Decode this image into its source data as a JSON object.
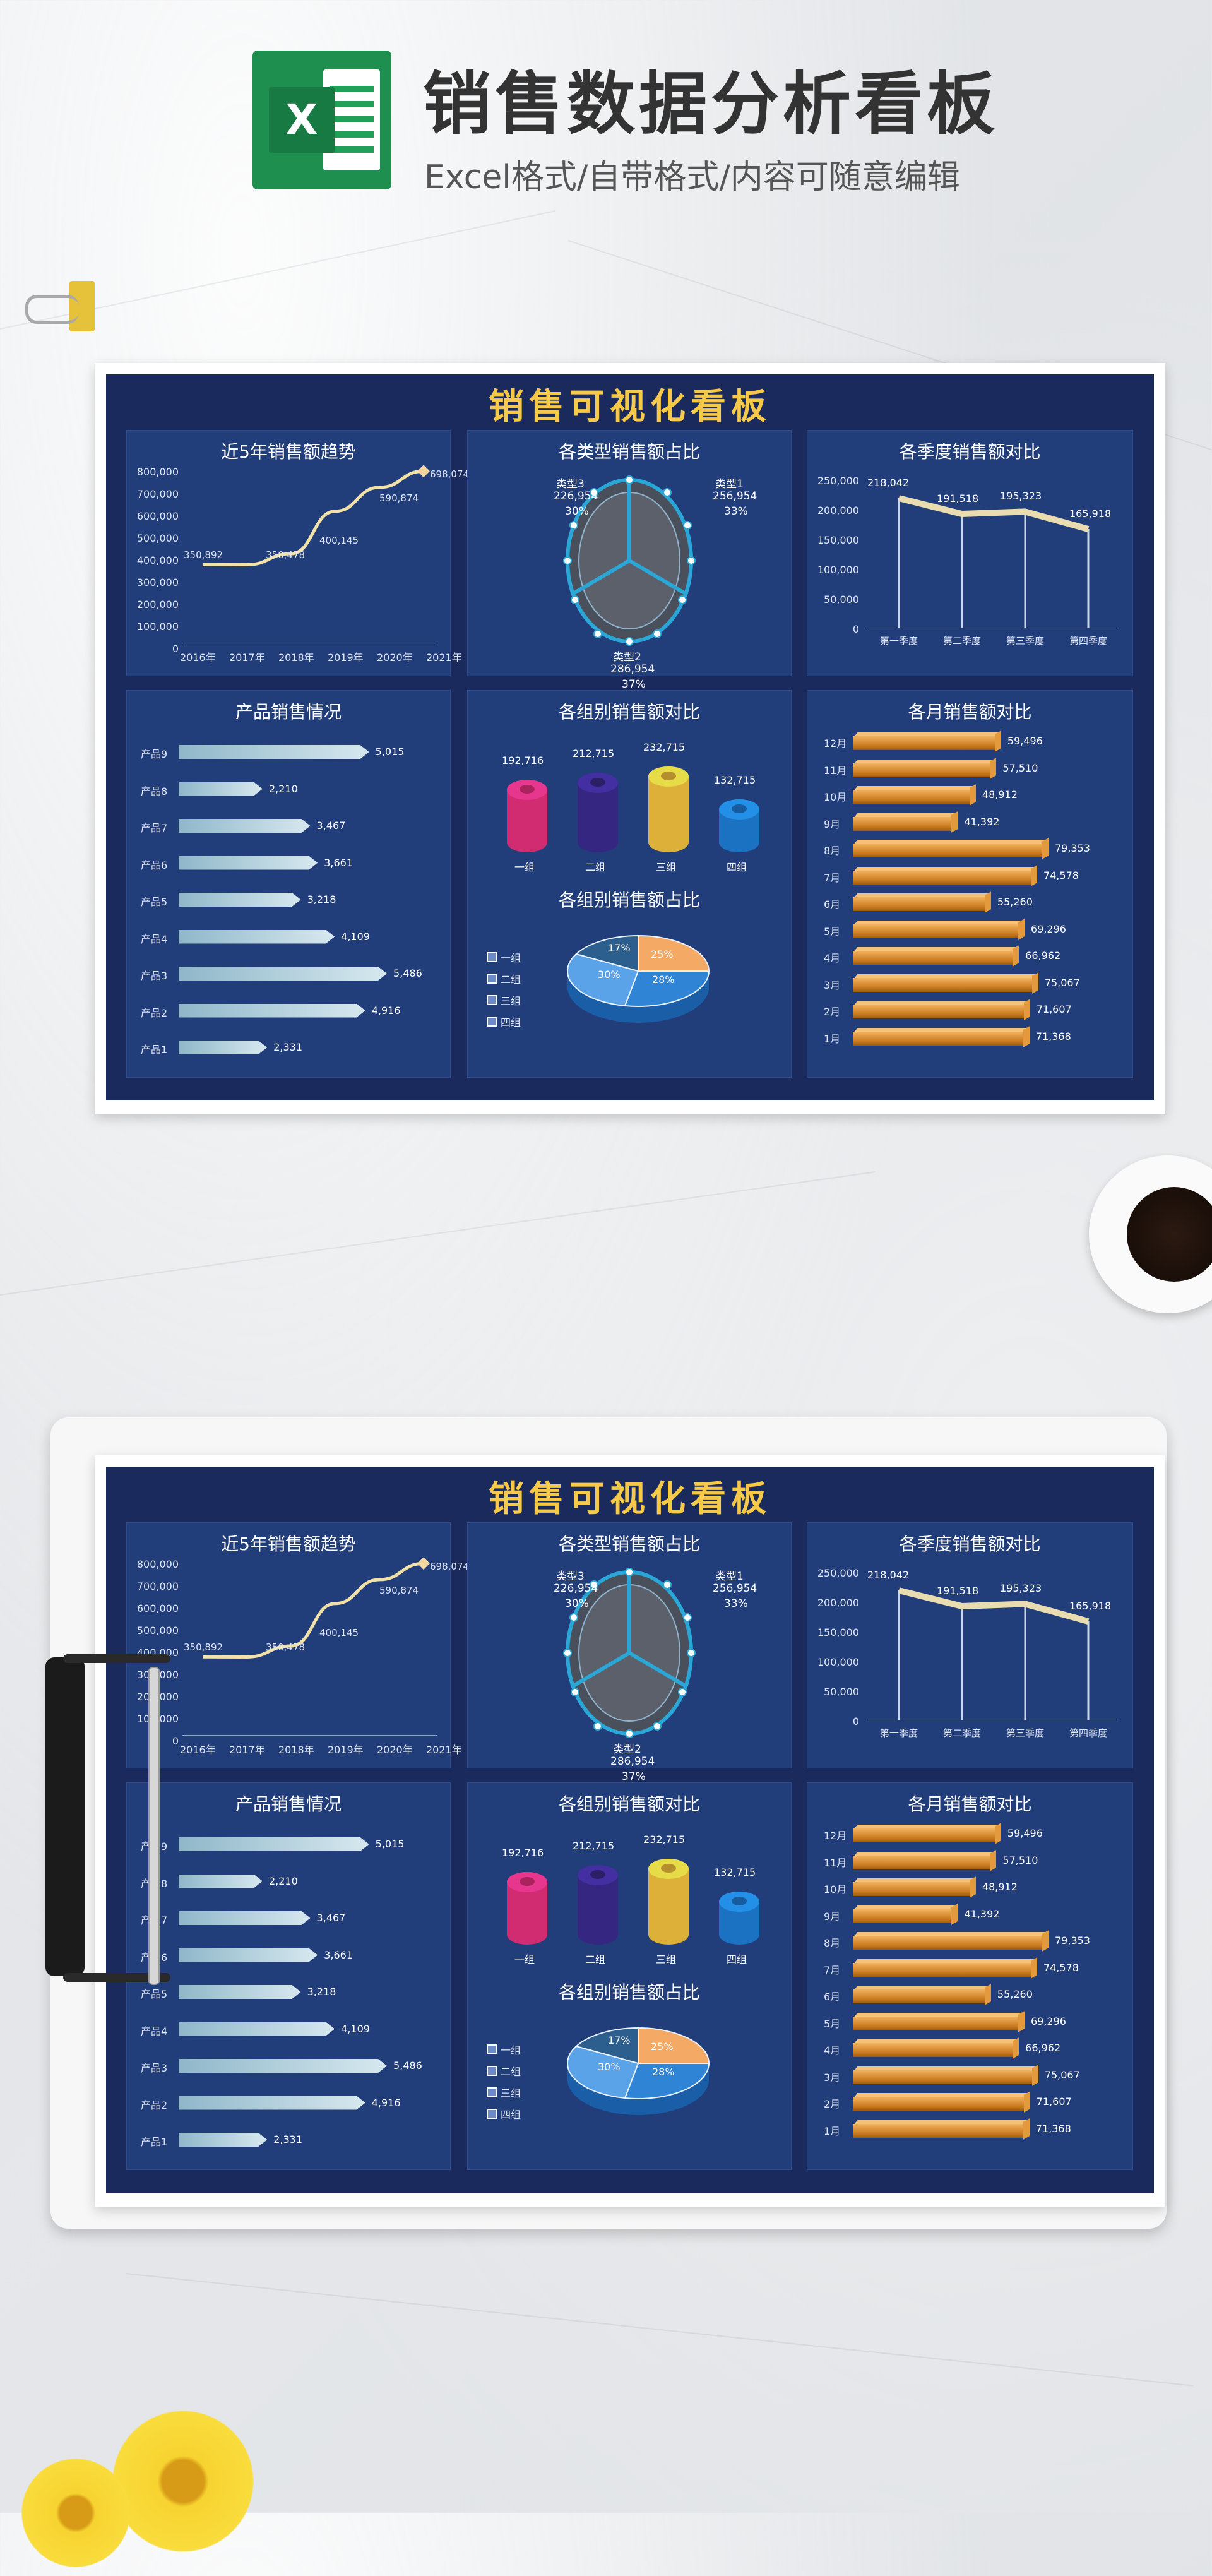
{
  "header": {
    "title": "销售数据分析看板",
    "subtitle": "Excel格式/自带格式/内容可随意编辑",
    "logo_letter": "X"
  },
  "dashboard": {
    "title": "销售可视化看板",
    "trend": {
      "title": "近5年销售额趋势",
      "yticks": [
        "800,000",
        "700,000",
        "600,000",
        "500,000",
        "400,000",
        "300,000",
        "200,000",
        "100,000",
        "0"
      ],
      "years": [
        "2016年",
        "2017年",
        "2018年",
        "2019年",
        "2020年",
        "2021年"
      ],
      "labels": [
        "350,892",
        "350,478",
        "400,145",
        "590,874",
        "698,074",
        "770,861"
      ]
    },
    "category_share": {
      "title": "各类型销售额占比",
      "items": [
        {
          "name": "类型1",
          "value": "256,954",
          "pct": "33%"
        },
        {
          "name": "类型2",
          "value": "286,954",
          "pct": "37%"
        },
        {
          "name": "类型3",
          "value": "226,954",
          "pct": "30%"
        }
      ]
    },
    "quarterly": {
      "title": "各季度销售额对比",
      "yticks": [
        "250,000",
        "200,000",
        "150,000",
        "100,000",
        "50,000",
        "0"
      ],
      "quarters": [
        "第一季度",
        "第二季度",
        "第三季度",
        "第四季度"
      ],
      "values": [
        "218,042",
        "191,518",
        "195,323",
        "165,918"
      ]
    },
    "products": {
      "title": "产品销售情况",
      "items": [
        {
          "name": "产品9",
          "value": "5,015"
        },
        {
          "name": "产品8",
          "value": "2,210"
        },
        {
          "name": "产品7",
          "value": "3,467"
        },
        {
          "name": "产品6",
          "value": "3,661"
        },
        {
          "name": "产品5",
          "value": "3,218"
        },
        {
          "name": "产品4",
          "value": "4,109"
        },
        {
          "name": "产品3",
          "value": "5,486"
        },
        {
          "name": "产品2",
          "value": "4,916"
        },
        {
          "name": "产品1",
          "value": "2,331"
        }
      ]
    },
    "groups": {
      "title": "各组别销售额对比",
      "items": [
        {
          "name": "一组",
          "value": "192,716",
          "color": "#e8307e"
        },
        {
          "name": "二组",
          "value": "212,715",
          "color": "#3b2a8f"
        },
        {
          "name": "三组",
          "value": "232,715",
          "color": "#f6c340"
        },
        {
          "name": "四组",
          "value": "132,715",
          "color": "#1f7fd8"
        }
      ]
    },
    "group_share": {
      "title": "各组别销售额占比",
      "legend": [
        "一组",
        "二组",
        "三组",
        "四组"
      ],
      "pcts": [
        "25%",
        "28%",
        "30%",
        "17%"
      ]
    },
    "monthly": {
      "title": "各月销售额对比",
      "items": [
        {
          "name": "12月",
          "value": "59,496"
        },
        {
          "name": "11月",
          "value": "57,510"
        },
        {
          "name": "10月",
          "value": "48,912"
        },
        {
          "name": "9月",
          "value": "41,392"
        },
        {
          "name": "8月",
          "value": "79,353"
        },
        {
          "name": "7月",
          "value": "74,578"
        },
        {
          "name": "6月",
          "value": "55,260"
        },
        {
          "name": "5月",
          "value": "69,296"
        },
        {
          "name": "4月",
          "value": "66,962"
        },
        {
          "name": "3月",
          "value": "75,067"
        },
        {
          "name": "2月",
          "value": "71,607"
        },
        {
          "name": "1月",
          "value": "71,368"
        }
      ]
    }
  },
  "chart_data": [
    {
      "type": "line",
      "title": "近5年销售额趋势",
      "x": [
        "2016年",
        "2017年",
        "2018年",
        "2019年",
        "2020年",
        "2021年"
      ],
      "values": [
        350892,
        350478,
        400145,
        590874,
        698074,
        770861
      ],
      "ylim": [
        0,
        800000
      ]
    },
    {
      "type": "pie",
      "title": "各类型销售额占比",
      "categories": [
        "类型1",
        "类型2",
        "类型3"
      ],
      "values": [
        256954,
        286954,
        226954
      ]
    },
    {
      "type": "line",
      "title": "各季度销售额对比",
      "x": [
        "第一季度",
        "第二季度",
        "第三季度",
        "第四季度"
      ],
      "values": [
        218042,
        191518,
        195323,
        165918
      ],
      "ylim": [
        0,
        250000
      ]
    },
    {
      "type": "bar",
      "title": "产品销售情况",
      "categories": [
        "产品9",
        "产品8",
        "产品7",
        "产品6",
        "产品5",
        "产品4",
        "产品3",
        "产品2",
        "产品1"
      ],
      "values": [
        5015,
        2210,
        3467,
        3661,
        3218,
        4109,
        5486,
        4916,
        2331
      ]
    },
    {
      "type": "bar",
      "title": "各组别销售额对比",
      "categories": [
        "一组",
        "二组",
        "三组",
        "四组"
      ],
      "values": [
        192716,
        212715,
        232715,
        132715
      ]
    },
    {
      "type": "pie",
      "title": "各组别销售额占比",
      "categories": [
        "一组",
        "二组",
        "三组",
        "四组"
      ],
      "values": [
        25,
        28,
        30,
        17
      ]
    },
    {
      "type": "bar",
      "title": "各月销售额对比",
      "categories": [
        "12月",
        "11月",
        "10月",
        "9月",
        "8月",
        "7月",
        "6月",
        "5月",
        "4月",
        "3月",
        "2月",
        "1月"
      ],
      "values": [
        59496,
        57510,
        48912,
        41392,
        79353,
        74578,
        55260,
        69296,
        66962,
        75067,
        71607,
        71368
      ]
    }
  ]
}
